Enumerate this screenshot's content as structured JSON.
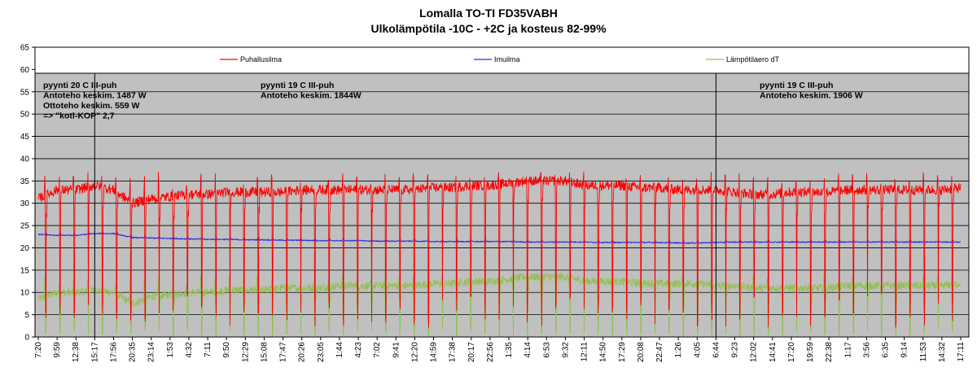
{
  "chart_data": {
    "type": "line",
    "title": "Lomalla TO-TI FD35VABH",
    "subtitle": "Ulkolämpötila -10C - +2C ja kosteus 82-99%",
    "ylim": [
      0,
      65
    ],
    "yticks": [
      0,
      5,
      10,
      15,
      20,
      25,
      30,
      35,
      40,
      45,
      50,
      55,
      60,
      65
    ],
    "grid": true,
    "legend_position": "top",
    "categories": [
      "7:20",
      "9:59",
      "12:38",
      "15:17",
      "17:56",
      "20:35",
      "23:14",
      "1:53",
      "4:32",
      "7:11",
      "9:50",
      "12:29",
      "15:08",
      "17:47",
      "20:26",
      "23:05",
      "1:44",
      "4:23",
      "7:02",
      "9:41",
      "12:20",
      "14:59",
      "17:38",
      "20:17",
      "22:56",
      "1:35",
      "4:14",
      "6:53",
      "9:32",
      "12:11",
      "14:50",
      "17:29",
      "20:08",
      "22:47",
      "1:26",
      "4:05",
      "6:44",
      "9:23",
      "12:02",
      "14:41",
      "17:20",
      "19:59",
      "22:38",
      "1:17",
      "3:56",
      "6:35",
      "9:14",
      "11:53",
      "14:32",
      "17:11"
    ],
    "series": [
      {
        "name": "Puhallusilma",
        "color": "#ff0000",
        "base": [
          31,
          33,
          33,
          34,
          33,
          30,
          31,
          31.5,
          32,
          32,
          32.5,
          32.5,
          32.5,
          32.5,
          33,
          33,
          33,
          33,
          33,
          33,
          33,
          33.5,
          33.5,
          34,
          34,
          34.5,
          35,
          35,
          35,
          34,
          34,
          34,
          33.5,
          33.5,
          33,
          33,
          33,
          32.5,
          32,
          32,
          32.5,
          32.5,
          32.5,
          33,
          33,
          33,
          33,
          33,
          33,
          33.5
        ]
      },
      {
        "name": "Imuilma",
        "color": "#2a2ae0",
        "base": [
          23,
          22.8,
          22.8,
          23.2,
          23.2,
          22.3,
          22.2,
          22.1,
          22,
          21.9,
          21.9,
          21.8,
          21.8,
          21.7,
          21.7,
          21.6,
          21.6,
          21.6,
          21.5,
          21.5,
          21.5,
          21.4,
          21.4,
          21.4,
          21.4,
          21.4,
          21.3,
          21.3,
          21.3,
          21.3,
          21.2,
          21.2,
          21.2,
          21.2,
          21.1,
          21.1,
          21.2,
          21.3,
          21.3,
          21.3,
          21.3,
          21.3,
          21.3,
          21.3,
          21.3,
          21.3,
          21.3,
          21.3,
          21.3,
          21.3
        ]
      },
      {
        "name": "Lämpötilaero dT",
        "color": "#92c050",
        "base": [
          8.5,
          10,
          10,
          10.5,
          10,
          7.5,
          9,
          9.5,
          10,
          10,
          10.5,
          10.5,
          10.5,
          11,
          11,
          11,
          11.5,
          11.5,
          11.5,
          11.5,
          11.5,
          12,
          12,
          12.5,
          12.5,
          13,
          13.5,
          13.5,
          13.5,
          12.5,
          12.5,
          12.5,
          12,
          12,
          12,
          12,
          11.5,
          11.5,
          11,
          11,
          11,
          11,
          11,
          11.5,
          11.5,
          11.5,
          11.5,
          11.5,
          11.5,
          12
        ]
      }
    ],
    "annotations": [
      {
        "lines": [
          "pyynti 20 C III-puh",
          "Antoteho keskim. 1487 W",
          "Ottoteho keskim. 559 W",
          "=> \"kotl-KOP\" 2,7"
        ]
      },
      {
        "lines": [
          "pyynti 19 C III-puh",
          "Antoteho keskim. 1844W"
        ]
      },
      {
        "lines": [
          "pyynti 19 C III-puh",
          "Antoteho keskim. 1906 W"
        ]
      }
    ],
    "separators_at": [
      "15:17",
      "6:44"
    ]
  }
}
